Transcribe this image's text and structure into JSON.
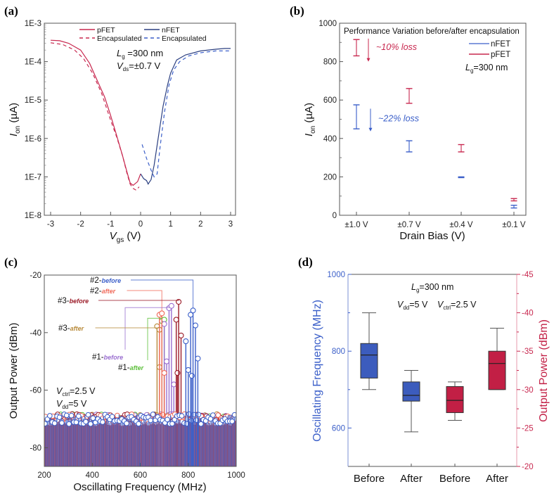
{
  "chart_data": [
    {
      "id": "a",
      "panel_label": "(a)",
      "type": "line",
      "xlabel_main": "V",
      "xlabel_sub": "gs",
      "xlabel_unit": " (V)",
      "ylabel_main": "I",
      "ylabel_sub": "on",
      "ylabel_unit": " (µA)",
      "yscale": "log",
      "xlim": [
        -3.15,
        3.2
      ],
      "ylim": [
        1e-08,
        0.001
      ],
      "xticks": [
        -3,
        -2,
        -1,
        0,
        1,
        2,
        3
      ],
      "xtick_labels": [
        "-3",
        "-2",
        "-1",
        "0",
        "1",
        "2",
        "3"
      ],
      "yticks": [
        0.001,
        0.0001,
        1e-05,
        1e-06,
        1e-07,
        1e-08
      ],
      "ytick_labels": [
        "1E-3",
        "1E-4",
        "1E-5",
        "1E-6",
        "1E-7",
        "1E-8"
      ],
      "annotations": {
        "lg_main": "L",
        "lg_sub": "g",
        "lg_val": " =300 nm",
        "vds_main": "V",
        "vds_sub": "ds",
        "vds_val": "=±0.7 V"
      },
      "legend": [
        {
          "name": "pFET",
          "style": "solid",
          "color": "#c8284f"
        },
        {
          "name": "Encapsulated",
          "style": "dashed",
          "color": "#c8284f"
        },
        {
          "name": "nFET",
          "style": "solid",
          "color": "#2b3f80"
        },
        {
          "name": "Encapsulated",
          "style": "dashed",
          "color": "#3b5fc9"
        }
      ],
      "series": [
        {
          "name": "pFET",
          "style": "solid",
          "color": "#c8284f",
          "x": [
            -3.0,
            -2.7,
            -2.4,
            -2.0,
            -1.7,
            -1.5,
            -1.2,
            -1.0,
            -0.8,
            -0.6,
            -0.45,
            -0.35,
            -0.25,
            -0.1,
            0.0
          ],
          "y": [
            0.00036,
            0.00035,
            0.0003,
            0.0002,
            9e-05,
            4e-05,
            1.2e-05,
            4e-06,
            1.2e-06,
            3.5e-07,
            1.3e-07,
            7e-08,
            6e-08,
            7.5e-08,
            1.2e-07
          ]
        },
        {
          "name": "pFET Encapsulated",
          "style": "dashed",
          "color": "#c8284f",
          "x": [
            -3.0,
            -2.6,
            -2.2,
            -1.9,
            -1.6,
            -1.3,
            -1.0,
            -0.8,
            -0.6,
            -0.45,
            -0.35,
            -0.25,
            -0.15,
            -0.05
          ],
          "y": [
            0.00031,
            0.00028,
            0.0002,
            0.00012,
            5e-05,
            1.5e-05,
            3e-06,
            1.1e-06,
            3.5e-07,
            1.2e-07,
            6.5e-08,
            5e-08,
            4.5e-08,
            5.5e-08
          ]
        },
        {
          "name": "nFET",
          "style": "solid",
          "color": "#2b3f80",
          "x": [
            0.0,
            0.1,
            0.2,
            0.25,
            0.35,
            0.45,
            0.6,
            0.75,
            0.9,
            1.0,
            1.2,
            1.5,
            2.0,
            2.5,
            2.8,
            3.0
          ],
          "y": [
            1.2e-07,
            9e-08,
            8e-08,
            6.5e-08,
            8.5e-08,
            2e-07,
            1.2e-06,
            7e-06,
            2.5e-05,
            5e-05,
            0.00011,
            0.00015,
            0.00019,
            0.00021,
            0.00022,
            0.00022
          ]
        },
        {
          "name": "nFET Encapsulated",
          "style": "dashed",
          "color": "#3b5fc9",
          "x": [
            0.05,
            0.2,
            0.35,
            0.45,
            0.55,
            0.65,
            0.8,
            0.95,
            1.1,
            1.3,
            1.6,
            2.0,
            2.5,
            3.0
          ],
          "y": [
            7e-07,
            3e-07,
            1.5e-07,
            1e-07,
            1.2e-07,
            6e-07,
            5e-06,
            2.5e-05,
            6e-05,
            0.0001,
            0.00014,
            0.00017,
            0.00019,
            0.00019
          ]
        }
      ]
    },
    {
      "id": "b",
      "panel_label": "(b)",
      "type": "errorbar",
      "title": "Performance Variation before/after encapsulation",
      "xlabel": "Drain Bias (V)",
      "ylabel_main": "I",
      "ylabel_sub": "on",
      "ylabel_unit": " (µA)",
      "ylim": [
        0,
        1000
      ],
      "yticks": [
        0,
        200,
        400,
        600,
        800,
        1000
      ],
      "ytick_labels": [
        "0",
        "200",
        "400",
        "600",
        "800",
        "1000"
      ],
      "categories": [
        "±1.0 V",
        "±0.7 V",
        "±0.4 V",
        "±0.1 V"
      ],
      "legend": [
        {
          "name": "nFET",
          "color": "#3b5fc9"
        },
        {
          "name": "pFET",
          "color": "#c8284f"
        }
      ],
      "legend_note_main": "L",
      "legend_note_sub": "g",
      "legend_note_val": "=300 nm",
      "series": [
        {
          "name": "pFET",
          "color": "#c8284f",
          "ranges": [
            [
              830,
              915
            ],
            [
              583,
              660
            ],
            [
              330,
              368
            ],
            [
              75,
              87
            ]
          ]
        },
        {
          "name": "nFET",
          "color": "#3b5fc9",
          "ranges": [
            [
              450,
              575
            ],
            [
              330,
              388
            ],
            [
              196,
              200
            ],
            [
              38,
              52
            ]
          ]
        }
      ],
      "annotations": [
        {
          "text": "~10% loss",
          "color": "#c8284f",
          "arrow_from": 920,
          "arrow_to": 800
        },
        {
          "text": "~22% loss",
          "color": "#3b5fc9",
          "arrow_from": 555,
          "arrow_to": 437
        }
      ]
    },
    {
      "id": "c",
      "panel_label": "(c)",
      "type": "line",
      "xlabel": "Oscillating Frequency (MHz)",
      "ylabel": "Output Power (dBm)",
      "xlim": [
        200,
        1000
      ],
      "ylim": [
        -86.5,
        -20
      ],
      "xticks": [
        200,
        400,
        600,
        800,
        1000
      ],
      "xtick_labels": [
        "200",
        "400",
        "600",
        "800",
        "1000"
      ],
      "yticks": [
        -20,
        -40,
        -60,
        -80
      ],
      "ytick_labels": [
        "-20",
        "-40",
        "-60",
        "-80"
      ],
      "annotations": {
        "vctrl_main": "V",
        "vctrl_sub": "ctrl",
        "vctrl_val": "=2.5 V",
        "vdd_main": "V",
        "vdd_sub": "dd",
        "vdd_val": "=5 V"
      },
      "noise_floor_dBm": -70,
      "series": [
        {
          "name": "#2-before",
          "id_text": "#2-",
          "state": "before",
          "color": "#3b5fc9",
          "peaks": [
            [
              790,
              -43
            ],
            [
              800,
              -53
            ],
            [
              810,
              -33.8
            ],
            [
              815,
              -55
            ],
            [
              820,
              -32.3
            ],
            [
              830,
              -37.5
            ],
            [
              840,
              -49
            ]
          ],
          "label_peak": [
            820,
            -32.3
          ]
        },
        {
          "name": "#2-after",
          "id_text": "#2-",
          "state": "after",
          "color": "#f06a5a",
          "peaks": [
            [
              680,
              -33.8
            ],
            [
              690,
              -33.3
            ],
            [
              700,
              -54
            ]
          ],
          "label_peak": [
            690,
            -33.3
          ]
        },
        {
          "name": "#3-before",
          "id_text": "#3-",
          "state": "before",
          "color": "#9b1b28",
          "peaks": [
            [
              750,
              -35.5
            ],
            [
              755,
              -54
            ],
            [
              760,
              -29.3
            ],
            [
              770,
              -41
            ]
          ],
          "label_peak": [
            760,
            -29.3
          ]
        },
        {
          "name": "#1-before",
          "id_text": "#1-",
          "state": "before",
          "color": "#9a6fd0",
          "peaks": [
            [
              700,
              -37
            ],
            [
              710,
              -50
            ],
            [
              720,
              -31.5
            ],
            [
              730,
              -30.7
            ],
            [
              740,
              -58
            ]
          ],
          "label_peak": [
            730,
            -30.7
          ]
        },
        {
          "name": "#1-after",
          "id_text": "#1-",
          "state": "after",
          "color": "#5cbf3a",
          "peaks": [
            [
              690,
              -36
            ],
            [
              700,
              -35.5
            ]
          ],
          "label_peak": [
            700,
            -35.5
          ]
        },
        {
          "name": "#3-after",
          "id_text": "#3-",
          "state": "after",
          "color": "#b88a3a",
          "peaks": [
            [
              670,
              -37.8
            ],
            [
              680,
              -39
            ],
            [
              680,
              -52
            ]
          ],
          "label_peak": [
            680,
            -39
          ]
        }
      ]
    },
    {
      "id": "d",
      "panel_label": "(d)",
      "type": "box",
      "ylabel_left": "Oscillating Frequency (MHz)",
      "ylabel_right": "Output Power (dBm)",
      "ylim_left": [
        500,
        1000
      ],
      "ylim_right": [
        -20,
        -45
      ],
      "yticks_left": [
        600,
        800,
        1000
      ],
      "ytick_labels_left": [
        "600",
        "800",
        "1000"
      ],
      "yticks_right": [
        -45,
        -40,
        -35,
        -30,
        -25,
        -20
      ],
      "ytick_labels_right": [
        "-45",
        "-40",
        "-35",
        "-30",
        "-25",
        "-20"
      ],
      "categories": [
        "Before",
        "After",
        "Before",
        "After"
      ],
      "left_color": "#3b5fc9",
      "right_color": "#c8284f",
      "annotations": {
        "lg_main": "L",
        "lg_sub": "g",
        "lg_val": "=300 nm",
        "vdd_main": "V",
        "vdd_sub": "dd",
        "vdd_val": "=5 V",
        "vctrl_main": "V",
        "vctrl_sub": "ctrl",
        "vctrl_val": "=2.5 V"
      },
      "boxes": [
        {
          "category": "Before",
          "axis": "left",
          "color": "#3c5cbd",
          "min": 700,
          "q1": 730,
          "median": 790,
          "q3": 820,
          "max": 900
        },
        {
          "category": "After",
          "axis": "left",
          "color": "#3c5cbd",
          "min": 590,
          "q1": 670,
          "median": 685,
          "q3": 720,
          "max": 750
        },
        {
          "category": "Before",
          "axis": "right",
          "color": "#c21f45",
          "min": -26.0,
          "q1": -27.0,
          "median": -28.6,
          "q3": -30.4,
          "max": -31.0
        },
        {
          "category": "After",
          "axis": "right",
          "color": "#c21f45",
          "min": -30.0,
          "q1": -30.0,
          "median": -33.4,
          "q3": -35.0,
          "max": -38.0
        }
      ]
    }
  ]
}
